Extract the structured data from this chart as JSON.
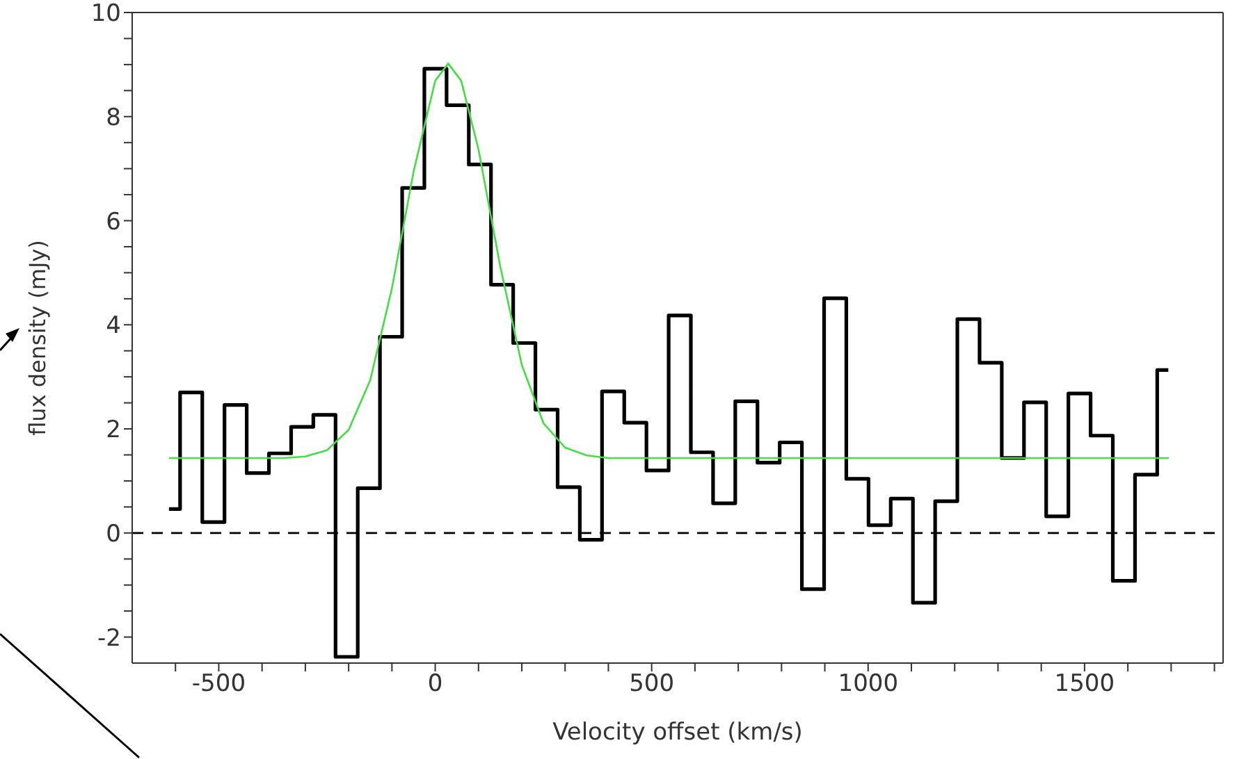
{
  "chart_data": {
    "type": "step",
    "xlabel": "Velocity offset (km/s)",
    "ylabel": "flux density (mJy)",
    "xlim": [
      -700,
      1820
    ],
    "ylim": [
      -2.5,
      10
    ],
    "xticks": [
      {
        "value": -600,
        "label": null
      },
      -500,
      {
        "value": -400,
        "label": null
      },
      {
        "value": -300,
        "label": null
      },
      {
        "value": -200,
        "label": null
      },
      {
        "value": -100,
        "label": null
      },
      0,
      {
        "value": 100,
        "label": null
      },
      {
        "value": 200,
        "label": null
      },
      {
        "value": 300,
        "label": null
      },
      {
        "value": 400,
        "label": null
      },
      500,
      {
        "value": 600,
        "label": null
      },
      {
        "value": 700,
        "label": null
      },
      {
        "value": 800,
        "label": null
      },
      {
        "value": 900,
        "label": null
      },
      1000,
      {
        "value": 1100,
        "label": null
      },
      {
        "value": 1200,
        "label": null
      },
      {
        "value": 1300,
        "label": null
      },
      {
        "value": 1400,
        "label": null
      },
      1500,
      {
        "value": 1600,
        "label": null
      },
      {
        "value": 1700,
        "label": null
      },
      {
        "value": 1800,
        "label": null
      }
    ],
    "yticks": [
      -2,
      {
        "value": -1.5,
        "label": null
      },
      {
        "value": -1,
        "label": null
      },
      {
        "value": -0.5,
        "label": null
      },
      0,
      {
        "value": 0.5,
        "label": null
      },
      {
        "value": 1,
        "label": null
      },
      {
        "value": 1.5,
        "label": null
      },
      2,
      {
        "value": 2.5,
        "label": null
      },
      {
        "value": 3,
        "label": null
      },
      {
        "value": 3.5,
        "label": null
      },
      4,
      {
        "value": 4.5,
        "label": null
      },
      {
        "value": 5,
        "label": null
      },
      {
        "value": 5.5,
        "label": null
      },
      6,
      {
        "value": 6.5,
        "label": null
      },
      {
        "value": 7,
        "label": null
      },
      {
        "value": 7.5,
        "label": null
      },
      8,
      {
        "value": 8.5,
        "label": null
      },
      {
        "value": 9,
        "label": null
      },
      {
        "value": 9.5,
        "label": null
      },
      10
    ],
    "series": [
      {
        "type": "step",
        "color": "#000000",
        "x": [
          -615,
          -563.7,
          -512.4,
          -461.1,
          -409.8,
          -358.5,
          -307.2,
          -255.9,
          -204.6,
          -153.3,
          -102,
          -50.7,
          0.6,
          51.9,
          103.2,
          154.5,
          205.8,
          257.1,
          308.4,
          359.7,
          411,
          462.3,
          513.6,
          564.9,
          616.2,
          667.5,
          718.8,
          770.1,
          821.4,
          872.7,
          924,
          975.3,
          1026.6,
          1077.9,
          1129.2,
          1180.5,
          1231.8,
          1283.1,
          1334.4,
          1385.7,
          1437,
          1488.3,
          1539.6,
          1590.9,
          1642.2,
          1693.5
        ],
        "values": [
          0.46,
          2.7,
          0.21,
          2.46,
          1.15,
          1.53,
          2.04,
          2.27,
          -2.38,
          0.86,
          3.77,
          6.63,
          8.92,
          8.22,
          7.08,
          4.77,
          3.65,
          2.37,
          0.88,
          -0.13,
          2.72,
          2.12,
          1.2,
          4.18,
          1.55,
          0.57,
          2.53,
          1.35,
          1.74,
          -1.08,
          4.51,
          1.04,
          0.15,
          0.66,
          -1.34,
          0.61,
          4.11,
          3.27,
          1.44,
          2.51,
          0.32,
          2.68,
          1.87,
          -0.92,
          1.12,
          3.13
        ]
      },
      {
        "type": "line",
        "color": "#44dd44",
        "x": [
          -615,
          -350,
          -300,
          -250,
          -200,
          -150,
          -100,
          -50,
          0,
          30,
          60,
          100,
          150,
          200,
          250,
          300,
          350,
          400,
          1695
        ],
        "values": [
          1.44,
          1.44,
          1.47,
          1.59,
          1.98,
          2.94,
          4.7,
          6.94,
          8.69,
          9.02,
          8.69,
          7.37,
          5.13,
          3.23,
          2.11,
          1.64,
          1.49,
          1.44,
          1.44
        ]
      }
    ],
    "ref_lines": [
      {
        "axis": "y",
        "value": 0,
        "color": "#000000",
        "line_style": "dashed"
      }
    ]
  }
}
